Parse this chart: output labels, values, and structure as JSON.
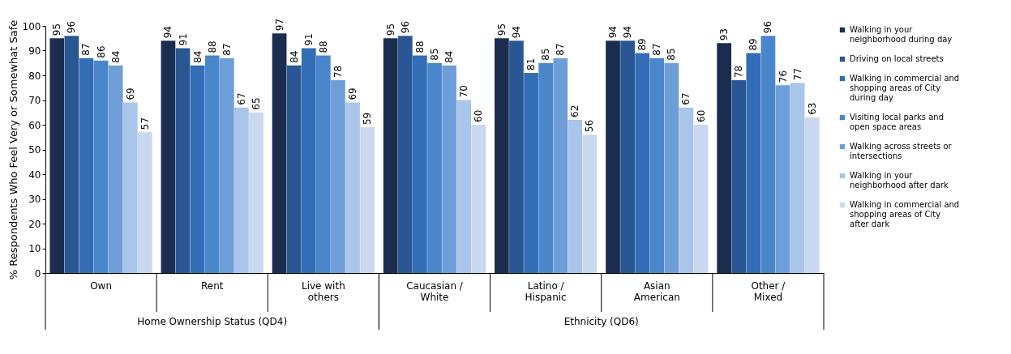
{
  "chart_data": {
    "type": "bar",
    "ylabel": "% Respondents Who Feel Very or Somewhat Safe",
    "categories": [
      "Own",
      "Rent",
      "Live with others",
      "Caucasian / White",
      "Latino / Hispanic",
      "Asian American",
      "Other / Mixed"
    ],
    "series": [
      {
        "name": "Walking in your neighborhood during day",
        "color": "#1b2d4f",
        "values": [
          95,
          94,
          97,
          95,
          95,
          94,
          93
        ]
      },
      {
        "name": "Driving on local streets",
        "color": "#2a5794",
        "values": [
          96,
          91,
          84,
          96,
          94,
          94,
          78
        ]
      },
      {
        "name": "Walking in commercial and shopping areas of City during day",
        "color": "#336db5",
        "values": [
          87,
          84,
          91,
          88,
          81,
          89,
          89
        ]
      },
      {
        "name": "Visiting local parks and open space areas",
        "color": "#4a86cc",
        "values": [
          86,
          88,
          88,
          85,
          85,
          87,
          96
        ]
      },
      {
        "name": "Walking across streets or intersections",
        "color": "#6e9ed8",
        "values": [
          84,
          87,
          78,
          84,
          87,
          85,
          76
        ]
      },
      {
        "name": "Walking in your neighborhood after dark",
        "color": "#a9c5e9",
        "values": [
          69,
          67,
          69,
          70,
          62,
          67,
          77
        ]
      },
      {
        "name": "Walking in commercial and shopping areas of City after dark",
        "color": "#cad9ef",
        "values": [
          57,
          65,
          59,
          60,
          56,
          60,
          63
        ]
      }
    ],
    "ylim": [
      0,
      100
    ],
    "yticks": [
      0,
      10,
      20,
      30,
      40,
      50,
      60,
      70,
      80,
      90,
      100
    ],
    "data_labels": true,
    "legend": "right",
    "grid": false,
    "annotations": [
      "Home Ownership Status (QD4)",
      "Ethnicity (QD6)"
    ]
  }
}
